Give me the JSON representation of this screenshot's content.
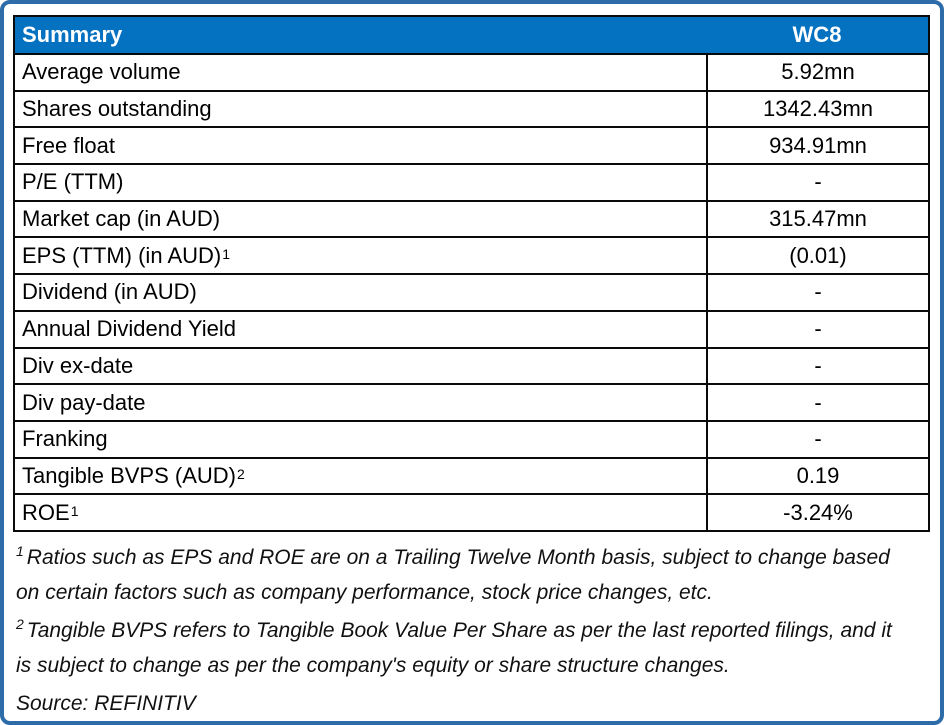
{
  "table": {
    "header": {
      "title": "Summary",
      "ticker": "WC8"
    },
    "rows": [
      {
        "label": "Average volume",
        "sup": "",
        "value": "5.92mn"
      },
      {
        "label": "Shares outstanding",
        "sup": "",
        "value": "1342.43mn"
      },
      {
        "label": "Free float",
        "sup": "",
        "value": "934.91mn"
      },
      {
        "label": "P/E (TTM)",
        "sup": "",
        "value": "-"
      },
      {
        "label": "Market cap (in AUD)",
        "sup": "",
        "value": "315.47mn"
      },
      {
        "label": "EPS (TTM) (in AUD)",
        "sup": "1",
        "value": "(0.01)"
      },
      {
        "label": "Dividend (in AUD)",
        "sup": "",
        "value": "-"
      },
      {
        "label": "Annual Dividend Yield",
        "sup": "",
        "value": "-"
      },
      {
        "label": "Div ex-date",
        "sup": "",
        "value": "-"
      },
      {
        "label": "Div pay-date",
        "sup": "",
        "value": "-"
      },
      {
        "label": "Franking",
        "sup": "",
        "value": "-"
      },
      {
        "label": "Tangible BVPS (AUD)",
        "sup": "2",
        "value": "0.19"
      },
      {
        "label": "ROE",
        "sup": "1",
        "value": "-3.24%"
      }
    ]
  },
  "footnotes": {
    "items": [
      {
        "sup": "1",
        "text": "Ratios such as EPS and ROE are on a Trailing Twelve Month basis, subject to change based on certain factors such as company performance, stock price changes, etc."
      },
      {
        "sup": "2",
        "text": "Tangible BVPS refers to Tangible Book Value Per Share as per the last reported filings, and it is subject to change as per the company's equity or share structure changes."
      }
    ],
    "source": "Source: REFINITIV"
  },
  "colors": {
    "header_bg": "#0571c1",
    "header_text": "#ffffff",
    "frame_border": "#2d6ca8",
    "table_border": "#0a0a0a"
  },
  "chart_data": {
    "type": "table",
    "title": "Summary",
    "columns": [
      "Summary",
      "WC8"
    ],
    "rows": [
      [
        "Average volume",
        "5.92mn"
      ],
      [
        "Shares outstanding",
        "1342.43mn"
      ],
      [
        "Free float",
        "934.91mn"
      ],
      [
        "P/E (TTM)",
        "-"
      ],
      [
        "Market cap (in AUD)",
        "315.47mn"
      ],
      [
        "EPS (TTM) (in AUD)",
        "(0.01)"
      ],
      [
        "Dividend (in AUD)",
        "-"
      ],
      [
        "Annual Dividend Yield",
        "-"
      ],
      [
        "Div ex-date",
        "-"
      ],
      [
        "Div pay-date",
        "-"
      ],
      [
        "Franking",
        "-"
      ],
      [
        "Tangible BVPS (AUD)",
        "0.19"
      ],
      [
        "ROE",
        "-3.24%"
      ]
    ],
    "source": "REFINITIV"
  }
}
